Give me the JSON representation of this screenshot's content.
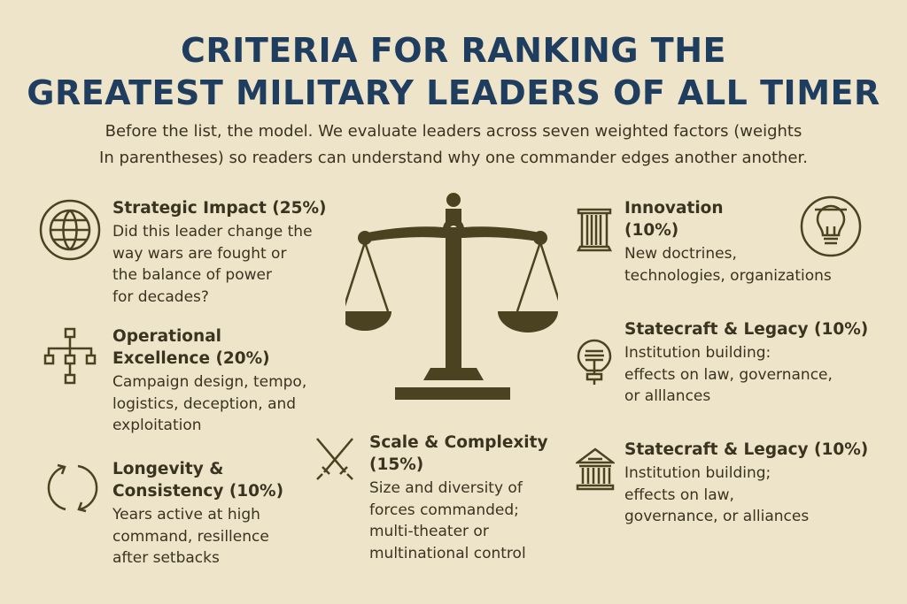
{
  "title": {
    "line1": "CRITERIA FOR RANKING THE",
    "line2": "GREATEST MILITARY LEADERS OF ALL TIMER"
  },
  "subtitle": {
    "line1": "Before the list, the model. We evaluate leaders across seven weighted factors (weights",
    "line2": "In parentheses) so readers can understand why one commander edges another another."
  },
  "colors": {
    "background": "#eee4c9",
    "title": "#1f3d5e",
    "icon": "#4a4220",
    "text": "#3a3320"
  },
  "criteria": [
    {
      "icon": "globe-icon",
      "title": "Strategic Impact (25%)",
      "lines": [
        "Did this leader change the",
        "way wars are fought or",
        "the balance of power",
        "for decades?"
      ]
    },
    {
      "icon": "org-chart-icon",
      "title_lines": [
        "Operational",
        "Excellence  (20%)"
      ],
      "lines": [
        "Campaign design, tempo,",
        "logistics, deception, and",
        "exploitation"
      ]
    },
    {
      "icon": "cycle-arrows-icon",
      "title_lines": [
        "Longevity &",
        "Consistency  (10%)"
      ],
      "lines": [
        "Years active at high",
        "command, resillence",
        "after setbacks"
      ]
    },
    {
      "icon": "crossed-swords-icon",
      "title_lines": [
        "Scale & Complexity",
        "(15%)"
      ],
      "lines": [
        "Size and diversity of",
        "forces commanded;",
        "multi-theater or",
        "multinational  control"
      ]
    },
    {
      "icon": "column-icon",
      "title_lines": [
        "Innovation",
        "(10%)"
      ],
      "lines": [
        "New doctrines,",
        "technologies,  organizations"
      ]
    },
    {
      "icon": "lightbulb-icon",
      "title": "Statecraft & Legacy (10%)",
      "lines": [
        "Institution building:",
        "effects on law, governance,",
        "or alllances"
      ]
    },
    {
      "icon": "institution-icon",
      "title": "Statecraft & Legacy (10%)",
      "lines": [
        "Institution building;",
        "effects on law,",
        "governance, or  alliances"
      ]
    }
  ],
  "center_icon": "balance-scale-icon",
  "extra_icon": "lightbulb-circle-icon"
}
